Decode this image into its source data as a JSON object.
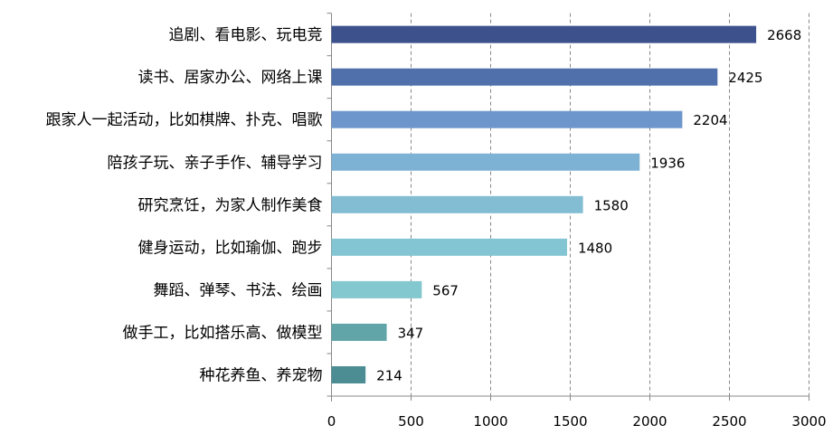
{
  "chart_data": {
    "type": "bar",
    "orientation": "horizontal",
    "title": "",
    "xlabel": "",
    "ylabel": "",
    "categories": [
      "追剧、看电影、玩电竞",
      "读书、居家办公、网络上课",
      "跟家人一起活动，比如棋牌、扑克、唱歌",
      "陪孩子玩、亲子手作、辅导学习",
      "研究烹饪，为家人制作美食",
      "健身运动，比如瑜伽、跑步",
      "舞蹈、弹琴、书法、绘画",
      "做手工，比如搭乐高、做模型",
      "种花养鱼、养宠物"
    ],
    "values": [
      2668,
      2425,
      2204,
      1936,
      1580,
      1480,
      567,
      347,
      214
    ],
    "colors": [
      "#3D528D",
      "#5070AC",
      "#6D97CC",
      "#7EB2D4",
      "#83BDD3",
      "#83C5D2",
      "#83C7CF",
      "#62A5A9",
      "#4B8D93"
    ],
    "xlim": [
      0,
      3000
    ],
    "xticks": [
      0,
      500,
      1000,
      1500,
      2000,
      2500,
      3000
    ],
    "grid": "vertical-dashed",
    "data_labels": true
  }
}
